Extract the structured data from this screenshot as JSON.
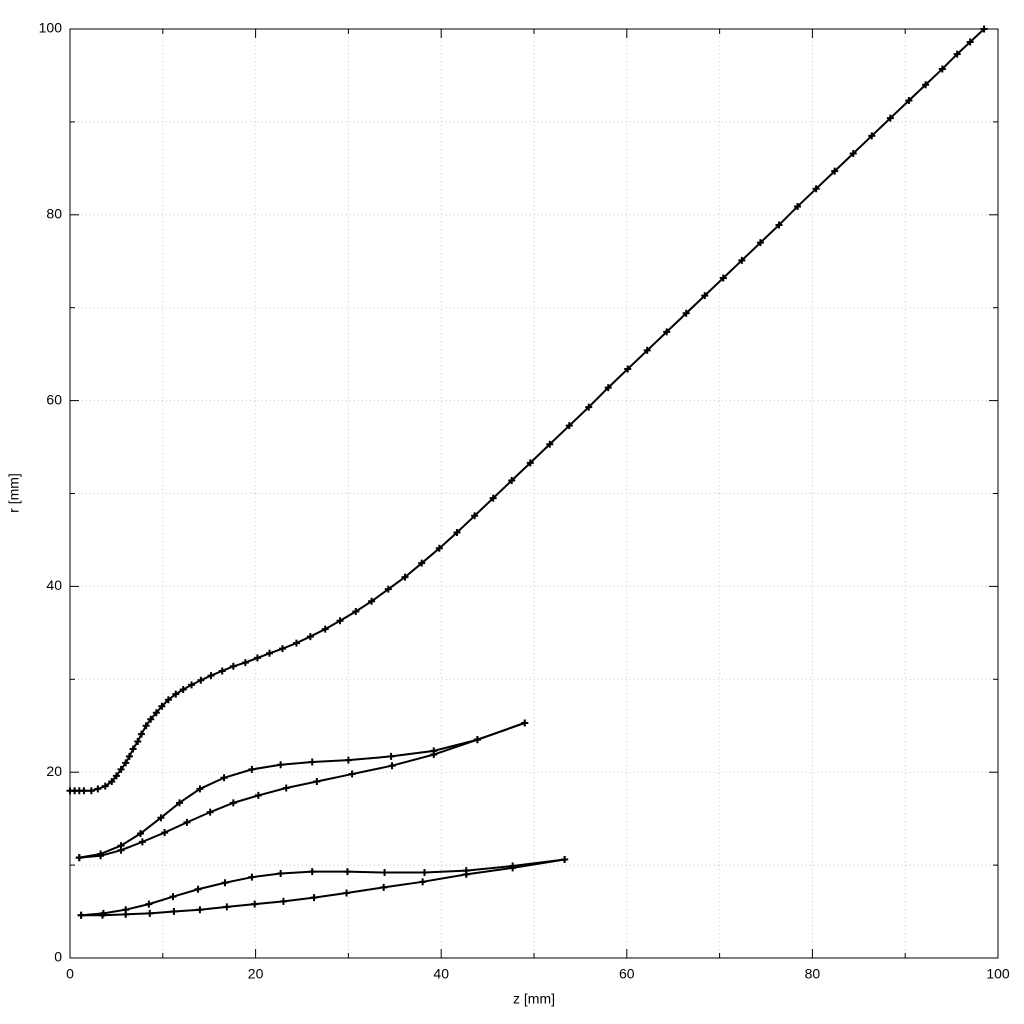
{
  "chart_data": {
    "type": "line",
    "x_label": "z [mm]",
    "y_label": "r [mm]",
    "xlim": [
      0,
      100
    ],
    "ylim": [
      0,
      100
    ],
    "xticks": [
      0,
      20,
      40,
      60,
      80,
      100
    ],
    "yticks": [
      0,
      20,
      40,
      60,
      80,
      100
    ],
    "xminorticks": [
      10,
      30,
      50,
      70,
      90
    ],
    "yminorticks": [
      10,
      30,
      50,
      70,
      90
    ],
    "grid": true,
    "marker": "+",
    "series": [
      {
        "color": "#000000",
        "x": [
          0,
          0.5,
          1,
          1.5,
          2.3,
          3,
          3.8,
          4.5,
          5,
          5.5,
          6,
          6.4,
          6.8,
          7.3,
          7.7,
          8.2,
          8.7,
          9.3,
          9.9,
          10.6,
          11.4,
          12.2,
          13.1,
          14.1,
          15.2,
          16.4,
          17.6,
          18.9,
          20.2,
          21.5,
          22.9,
          24.4,
          25.9,
          27.5,
          29.1,
          30.8,
          32.5,
          34.3,
          36.1,
          37.9,
          39.8,
          41.7,
          43.6,
          45.6,
          47.6,
          49.6,
          51.7,
          53.8,
          55.9,
          58.0,
          60.1,
          62.2,
          64.3,
          66.4,
          68.4,
          70.4,
          72.4,
          74.4,
          76.4,
          78.4,
          80.4,
          82.4,
          84.4,
          86.4,
          88.4,
          90.4,
          92.2,
          94.0,
          95.6,
          97.0,
          98.5
        ],
        "values": [
          18,
          18,
          18,
          18,
          18,
          18.2,
          18.5,
          19,
          19.6,
          20.3,
          21,
          21.7,
          22.5,
          23.3,
          24.1,
          25,
          25.7,
          26.4,
          27.1,
          27.8,
          28.4,
          28.9,
          29.4,
          29.9,
          30.4,
          30.9,
          31.4,
          31.8,
          32.3,
          32.8,
          33.3,
          33.9,
          34.6,
          35.4,
          36.3,
          37.3,
          38.4,
          39.7,
          41.0,
          42.5,
          44.1,
          45.8,
          47.6,
          49.5,
          51.4,
          53.3,
          55.3,
          57.3,
          59.3,
          61.4,
          63.4,
          65.4,
          67.4,
          69.4,
          71.3,
          73.2,
          75.1,
          77.0,
          78.9,
          80.9,
          82.8,
          84.7,
          86.6,
          88.5,
          90.4,
          92.3,
          94.0,
          95.7,
          97.3,
          98.6,
          100
        ]
      },
      {
        "color": "#000000",
        "x": [
          1,
          3.3,
          5.5,
          7.6,
          9.8,
          11.8,
          14,
          16.6,
          19.6,
          22.7,
          26.1,
          30,
          34.6,
          39.2,
          43.9,
          49
        ],
        "values": [
          10.8,
          11.2,
          12.1,
          13.4,
          15.1,
          16.7,
          18.2,
          19.4,
          20.3,
          20.8,
          21.1,
          21.3,
          21.7,
          22.3,
          23.5,
          25.3
        ]
      },
      {
        "color": "#000000",
        "x": [
          1,
          3.3,
          5.5,
          7.8,
          10.2,
          12.6,
          15.1,
          17.6,
          20.3,
          23.3,
          26.6,
          30.4,
          34.7,
          39.2,
          43.9,
          49
        ],
        "values": [
          10.8,
          11.0,
          11.6,
          12.5,
          13.5,
          14.6,
          15.7,
          16.7,
          17.5,
          18.3,
          19.0,
          19.8,
          20.7,
          21.9,
          23.5,
          25.3
        ]
      },
      {
        "color": "#000000",
        "x": [
          1.2,
          3.6,
          6,
          8.5,
          11.1,
          13.8,
          16.7,
          19.6,
          22.7,
          26.1,
          29.9,
          33.9,
          38.2,
          42.7,
          47.7,
          53.3
        ],
        "values": [
          4.6,
          4.8,
          5.2,
          5.8,
          6.6,
          7.4,
          8.1,
          8.7,
          9.1,
          9.3,
          9.3,
          9.2,
          9.2,
          9.4,
          9.9,
          10.6
        ]
      },
      {
        "color": "#000000",
        "x": [
          1.2,
          3.5,
          6,
          8.6,
          11.2,
          14,
          16.9,
          19.9,
          23,
          26.3,
          29.8,
          33.8,
          38,
          42.7,
          47.7,
          53.3
        ],
        "values": [
          4.6,
          4.6,
          4.7,
          4.8,
          5.0,
          5.2,
          5.5,
          5.8,
          6.1,
          6.5,
          7.0,
          7.6,
          8.2,
          9.0,
          9.7,
          10.6
        ]
      }
    ]
  }
}
